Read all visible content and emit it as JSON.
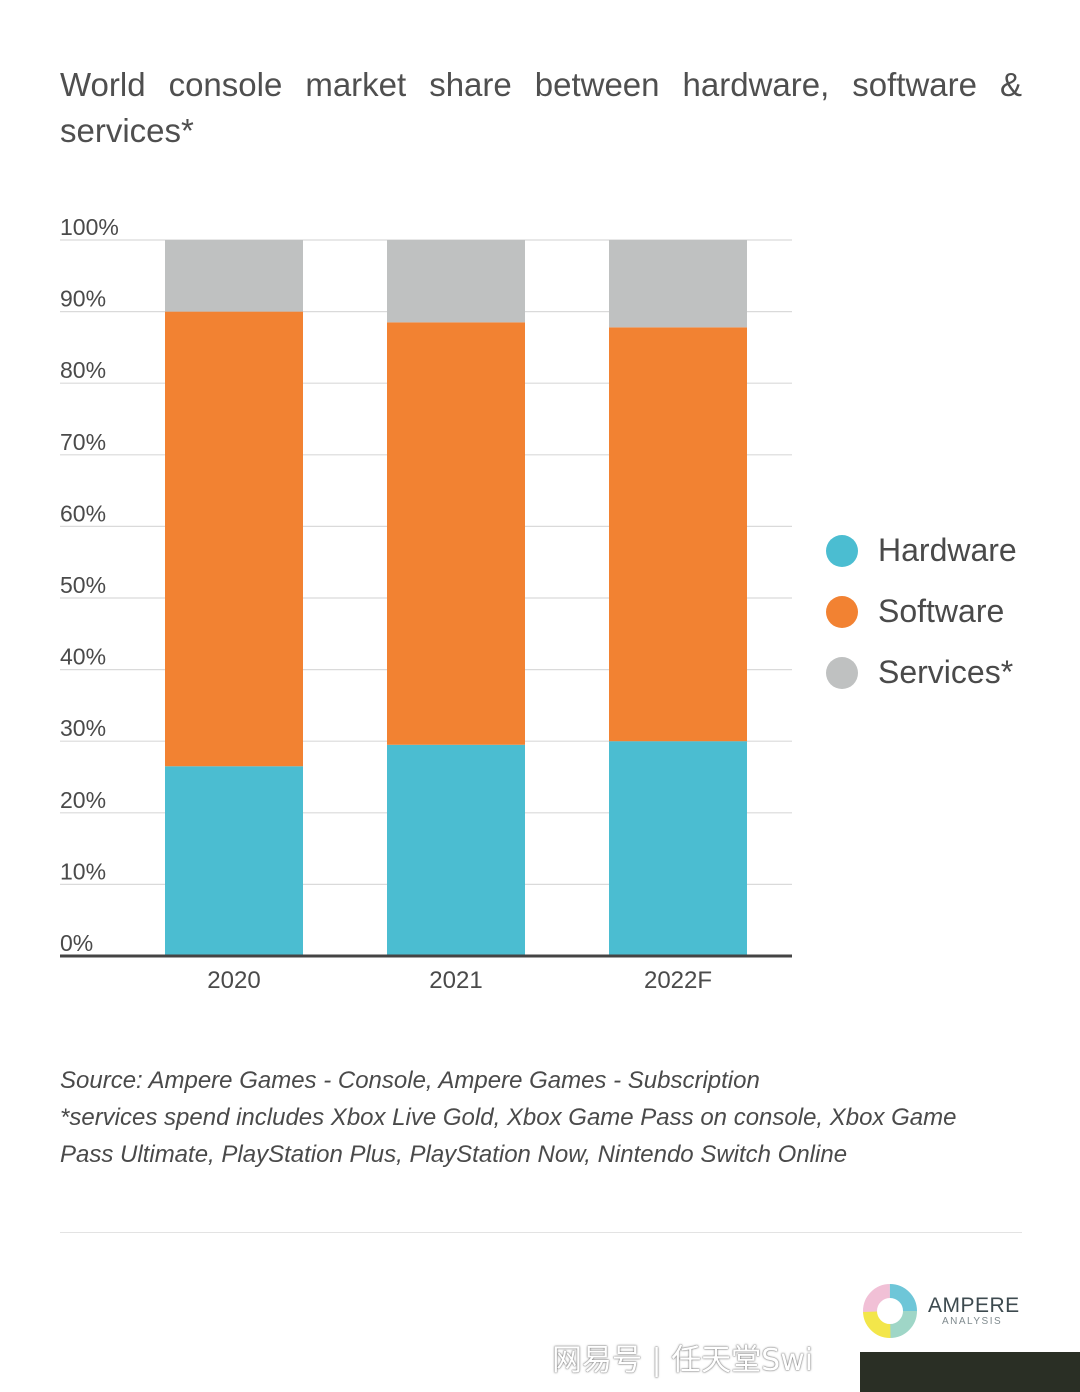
{
  "title": "World console market share between hardware, software & services*",
  "chart_data": {
    "type": "bar",
    "stacked": true,
    "categories": [
      "2020",
      "2021",
      "2022F"
    ],
    "series": [
      {
        "name": "Hardware",
        "color": "#4bbdd1",
        "values": [
          26.5,
          29.5,
          30
        ]
      },
      {
        "name": "Software",
        "color": "#f28232",
        "values": [
          63.5,
          59,
          57.8
        ]
      },
      {
        "name": "Services*",
        "color": "#bfc1c1",
        "values": [
          10,
          11.5,
          12.2
        ]
      }
    ],
    "ylim": [
      0,
      100
    ],
    "yticks": [
      "0%",
      "10%",
      "20%",
      "30%",
      "40%",
      "50%",
      "60%",
      "70%",
      "80%",
      "90%",
      "100%"
    ],
    "grid": true,
    "legend_position": "right"
  },
  "source": {
    "line1": "Source: Ampere Games - Console, Ampere Games - Subscription",
    "line2": "*services spend includes Xbox Live Gold, Xbox Game Pass on console, Xbox Game Pass Ultimate, PlayStation Plus, PlayStation Now, Nintendo Switch Online"
  },
  "logo": {
    "name": "AMPERE",
    "subtitle": "ANALYSIS"
  },
  "watermark": "网易号 | 任天堂Swi"
}
